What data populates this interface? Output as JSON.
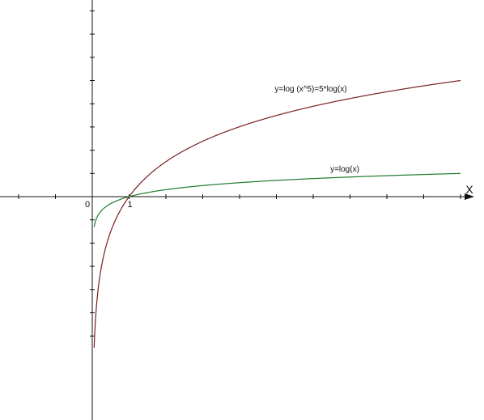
{
  "chart_data": {
    "type": "line",
    "title": "",
    "xlabel": "X",
    "ylabel": "",
    "xlim": [
      -2.5,
      9.9
    ],
    "ylim": [
      -6,
      9.25
    ],
    "x_ticks": [
      -2,
      -1,
      0,
      1,
      2,
      3,
      4,
      5,
      6,
      7,
      8,
      9,
      10
    ],
    "y_ticks": [
      -6,
      -5,
      -4,
      -3,
      -2,
      -1,
      1,
      2,
      3,
      4,
      5,
      6,
      7,
      8,
      9
    ],
    "x_tick_labels": [
      {
        "x": 0,
        "label": "0"
      },
      {
        "x": 1,
        "label": "1"
      }
    ],
    "grid": false,
    "series": [
      {
        "name": "y=log (x^5)=5*log(x)",
        "color": "#7a1f1f",
        "function": "5*log10(x)",
        "domain": [
          0.05,
          10
        ],
        "label": "y=log (x^5)=5*log(x)"
      },
      {
        "name": "y=log(x)",
        "color": "#1f7a2c",
        "function": "log10(x)",
        "domain": [
          0.05,
          10
        ],
        "label": "y=log(x)"
      }
    ]
  }
}
